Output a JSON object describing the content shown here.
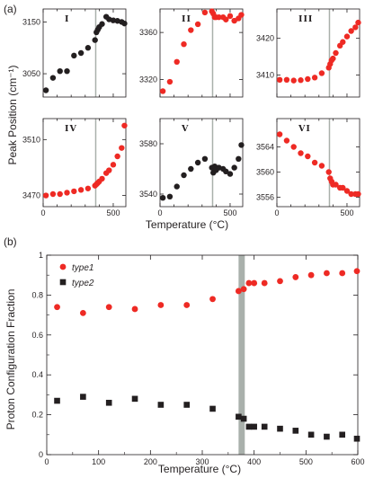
{
  "panel_a_label": "(a)",
  "panel_b_label": "(b)",
  "colors": {
    "red": "#ee2a24",
    "black": "#231f20",
    "band": "#a9b0ab"
  },
  "chart_data": [
    {
      "type": "scatter",
      "panel": "(a)",
      "ylabel": "Peak Position (cm⁻¹)",
      "xlabel": "Temperature (°C)",
      "xlim": [
        0,
        590
      ],
      "vline": 375,
      "subplots": [
        {
          "label": "I",
          "color": "#231f20",
          "ylim": [
            3005,
            3175
          ],
          "yticks": [
            "3050",
            "3150"
          ],
          "ytick_values": [
            3050,
            3150
          ],
          "x": [
            20,
            70,
            120,
            170,
            220,
            270,
            320,
            370,
            380,
            390,
            400,
            420,
            450,
            470,
            500,
            530,
            560,
            580
          ],
          "y": [
            3018,
            3042,
            3055,
            3055,
            3085,
            3090,
            3100,
            3115,
            3130,
            3135,
            3140,
            3146,
            3160,
            3155,
            3153,
            3152,
            3150,
            3147
          ]
        },
        {
          "label": "II",
          "color": "#ee2a24",
          "ylim": [
            3305,
            3380
          ],
          "yticks": [
            "3320",
            "3360"
          ],
          "ytick_values": [
            3320,
            3360
          ],
          "x": [
            20,
            70,
            120,
            170,
            220,
            270,
            320,
            370,
            380,
            390,
            400,
            420,
            450,
            470,
            500,
            530,
            560,
            580
          ],
          "y": [
            3310,
            3318,
            3335,
            3350,
            3362,
            3367,
            3377,
            3378,
            3376,
            3373,
            3373,
            3373,
            3373,
            3371,
            3374,
            3370,
            3372,
            3375
          ]
        },
        {
          "label": "III",
          "color": "#ee2a24",
          "ylim": [
            3404,
            3428
          ],
          "yticks": [
            "3410",
            "3420"
          ],
          "ytick_values": [
            3410,
            3420
          ],
          "x": [
            20,
            70,
            120,
            170,
            220,
            270,
            320,
            370,
            380,
            390,
            400,
            420,
            450,
            470,
            500,
            530,
            560,
            580
          ],
          "y": [
            3408.7,
            3408.7,
            3408.5,
            3408.6,
            3408.9,
            3409.3,
            3410.5,
            3412,
            3413,
            3414,
            3414.5,
            3416,
            3418,
            3419,
            3420.5,
            3422,
            3423,
            3424.3
          ]
        },
        {
          "label": "IV",
          "color": "#ee2a24",
          "ylim": [
            3462,
            3525
          ],
          "yticks": [
            "3470",
            "3510"
          ],
          "ytick_values": [
            3470,
            3510
          ],
          "x": [
            20,
            70,
            120,
            170,
            220,
            270,
            320,
            370,
            380,
            390,
            400,
            420,
            450,
            470,
            500,
            530,
            560,
            580
          ],
          "y": [
            3470,
            3471,
            3471,
            3472,
            3473,
            3474,
            3475,
            3477,
            3478,
            3479,
            3480,
            3482,
            3486,
            3488,
            3492,
            3498,
            3504,
            3520
          ]
        },
        {
          "label": "V",
          "color": "#231f20",
          "ylim": [
            3530,
            3600
          ],
          "yticks": [
            "3540",
            "3580"
          ],
          "ytick_values": [
            3540,
            3580
          ],
          "x": [
            20,
            70,
            120,
            170,
            220,
            270,
            320,
            370,
            380,
            390,
            400,
            420,
            450,
            470,
            500,
            530,
            560,
            580
          ],
          "y": [
            3537,
            3538,
            3546,
            3555,
            3560,
            3565,
            3568,
            3561,
            3557,
            3562,
            3559,
            3561,
            3560,
            3558,
            3556,
            3561,
            3568,
            3579
          ]
        },
        {
          "label": "VI",
          "color": "#ee2a24",
          "ylim": [
            3554.5,
            3568.5
          ],
          "yticks": [
            "3556",
            "3560",
            "3564"
          ],
          "ytick_values": [
            3556,
            3560,
            3564
          ],
          "x": [
            20,
            70,
            120,
            170,
            220,
            270,
            320,
            370,
            380,
            390,
            400,
            420,
            450,
            470,
            500,
            530,
            560,
            580
          ],
          "y": [
            3566,
            3565,
            3564,
            3563,
            3562.5,
            3561.5,
            3561,
            3560,
            3559,
            3558.5,
            3558,
            3558,
            3557.5,
            3557.5,
            3557,
            3556.5,
            3556.5,
            3556.5
          ]
        }
      ],
      "xticks": [
        "0",
        "500"
      ],
      "xtick_values": [
        0,
        500
      ]
    },
    {
      "type": "scatter",
      "panel": "(b)",
      "ylabel": "Proton Configuration Fraction",
      "xlabel": "Temperature (°C)",
      "xlim": [
        0,
        600
      ],
      "ylim": [
        0,
        1
      ],
      "band": [
        370,
        382
      ],
      "xticks": [
        "0",
        "100",
        "200",
        "300",
        "400",
        "500",
        "600"
      ],
      "xtick_values": [
        0,
        100,
        200,
        300,
        400,
        500,
        600
      ],
      "yticks": [
        "0",
        "0.2",
        "0.4",
        "0.6",
        "0.8",
        "1"
      ],
      "ytick_values": [
        0,
        0.2,
        0.4,
        0.6,
        0.8,
        1
      ],
      "legend_position": "top-left",
      "series": [
        {
          "name": "type1",
          "marker": "circle",
          "color": "#ee2a24",
          "x": [
            20,
            70,
            120,
            170,
            220,
            270,
            320,
            370,
            380,
            390,
            400,
            420,
            450,
            480,
            510,
            540,
            570,
            600
          ],
          "y": [
            0.74,
            0.71,
            0.74,
            0.73,
            0.75,
            0.75,
            0.78,
            0.82,
            0.83,
            0.86,
            0.86,
            0.86,
            0.87,
            0.89,
            0.9,
            0.91,
            0.91,
            0.92
          ]
        },
        {
          "name": "type2",
          "marker": "square",
          "color": "#231f20",
          "x": [
            20,
            70,
            120,
            170,
            220,
            270,
            320,
            370,
            380,
            390,
            400,
            420,
            450,
            480,
            510,
            540,
            570,
            600
          ],
          "y": [
            0.27,
            0.29,
            0.26,
            0.28,
            0.25,
            0.25,
            0.23,
            0.19,
            0.18,
            0.14,
            0.14,
            0.14,
            0.13,
            0.12,
            0.1,
            0.09,
            0.1,
            0.08
          ]
        }
      ]
    }
  ]
}
